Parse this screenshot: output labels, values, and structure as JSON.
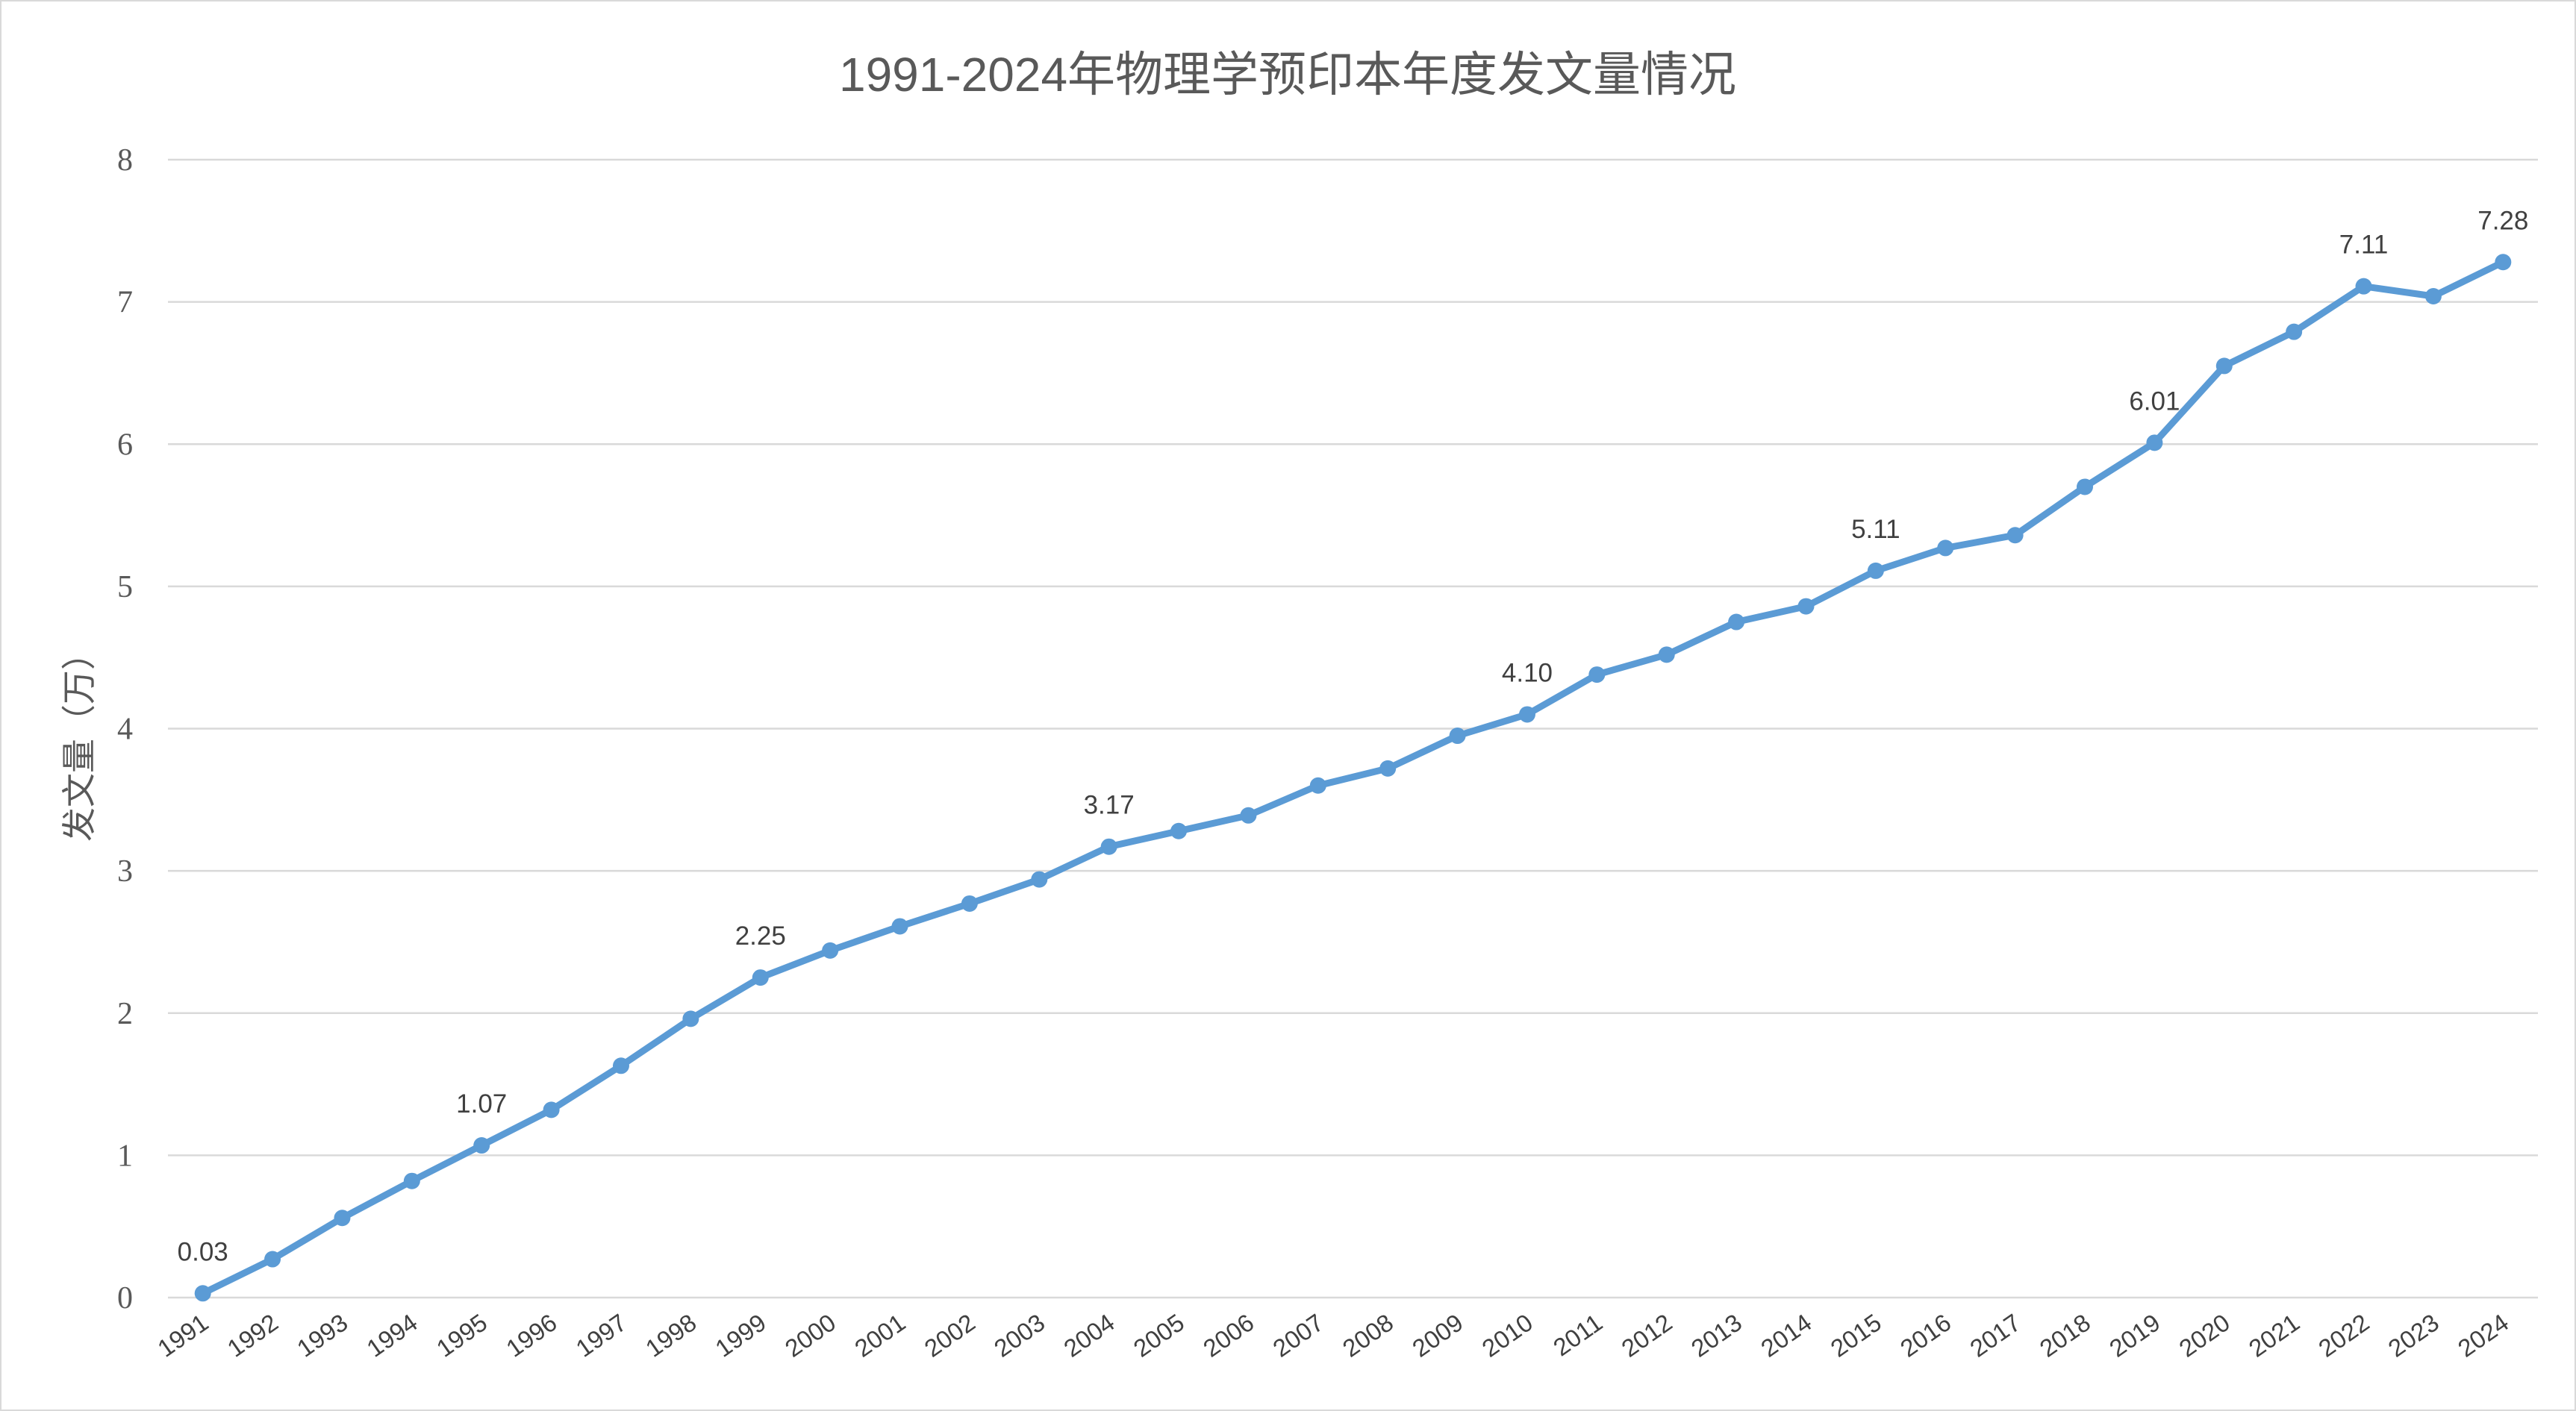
{
  "colors": {
    "series": "#5b9bd5",
    "grid": "#d9d9d9",
    "text": "#595959",
    "label": "#404040"
  },
  "chart_data": {
    "type": "line",
    "title": "1991-2024年物理学预印本年度发文量情况",
    "xlabel": "",
    "ylabel": "发文量（万）",
    "ylim": [
      0,
      8
    ],
    "yticks": [
      0,
      1,
      2,
      3,
      4,
      5,
      6,
      7,
      8
    ],
    "grid": true,
    "legend": "none",
    "categories": [
      "1991",
      "1992",
      "1993",
      "1994",
      "1995",
      "1996",
      "1997",
      "1998",
      "1999",
      "2000",
      "2001",
      "2002",
      "2003",
      "2004",
      "2005",
      "2006",
      "2007",
      "2008",
      "2009",
      "2010",
      "2011",
      "2012",
      "2013",
      "2014",
      "2015",
      "2016",
      "2017",
      "2018",
      "2019",
      "2020",
      "2021",
      "2022",
      "2023",
      "2024"
    ],
    "series": [
      {
        "values": [
          0.03,
          0.27,
          0.56,
          0.82,
          1.07,
          1.32,
          1.63,
          1.96,
          2.25,
          2.44,
          2.61,
          2.77,
          2.94,
          3.17,
          3.28,
          3.39,
          3.6,
          3.72,
          3.95,
          4.1,
          4.38,
          4.52,
          4.75,
          4.86,
          5.11,
          5.27,
          5.36,
          5.7,
          6.01,
          6.55,
          6.79,
          7.11,
          7.04,
          7.28
        ]
      }
    ],
    "data_labels": [
      {
        "category": "1991",
        "text": "0.03"
      },
      {
        "category": "1995",
        "text": "1.07"
      },
      {
        "category": "1999",
        "text": "2.25"
      },
      {
        "category": "2004",
        "text": "3.17"
      },
      {
        "category": "2010",
        "text": "4.10"
      },
      {
        "category": "2015",
        "text": "5.11"
      },
      {
        "category": "2019",
        "text": "6.01"
      },
      {
        "category": "2022",
        "text": "7.11"
      },
      {
        "category": "2024",
        "text": "7.28"
      }
    ]
  }
}
